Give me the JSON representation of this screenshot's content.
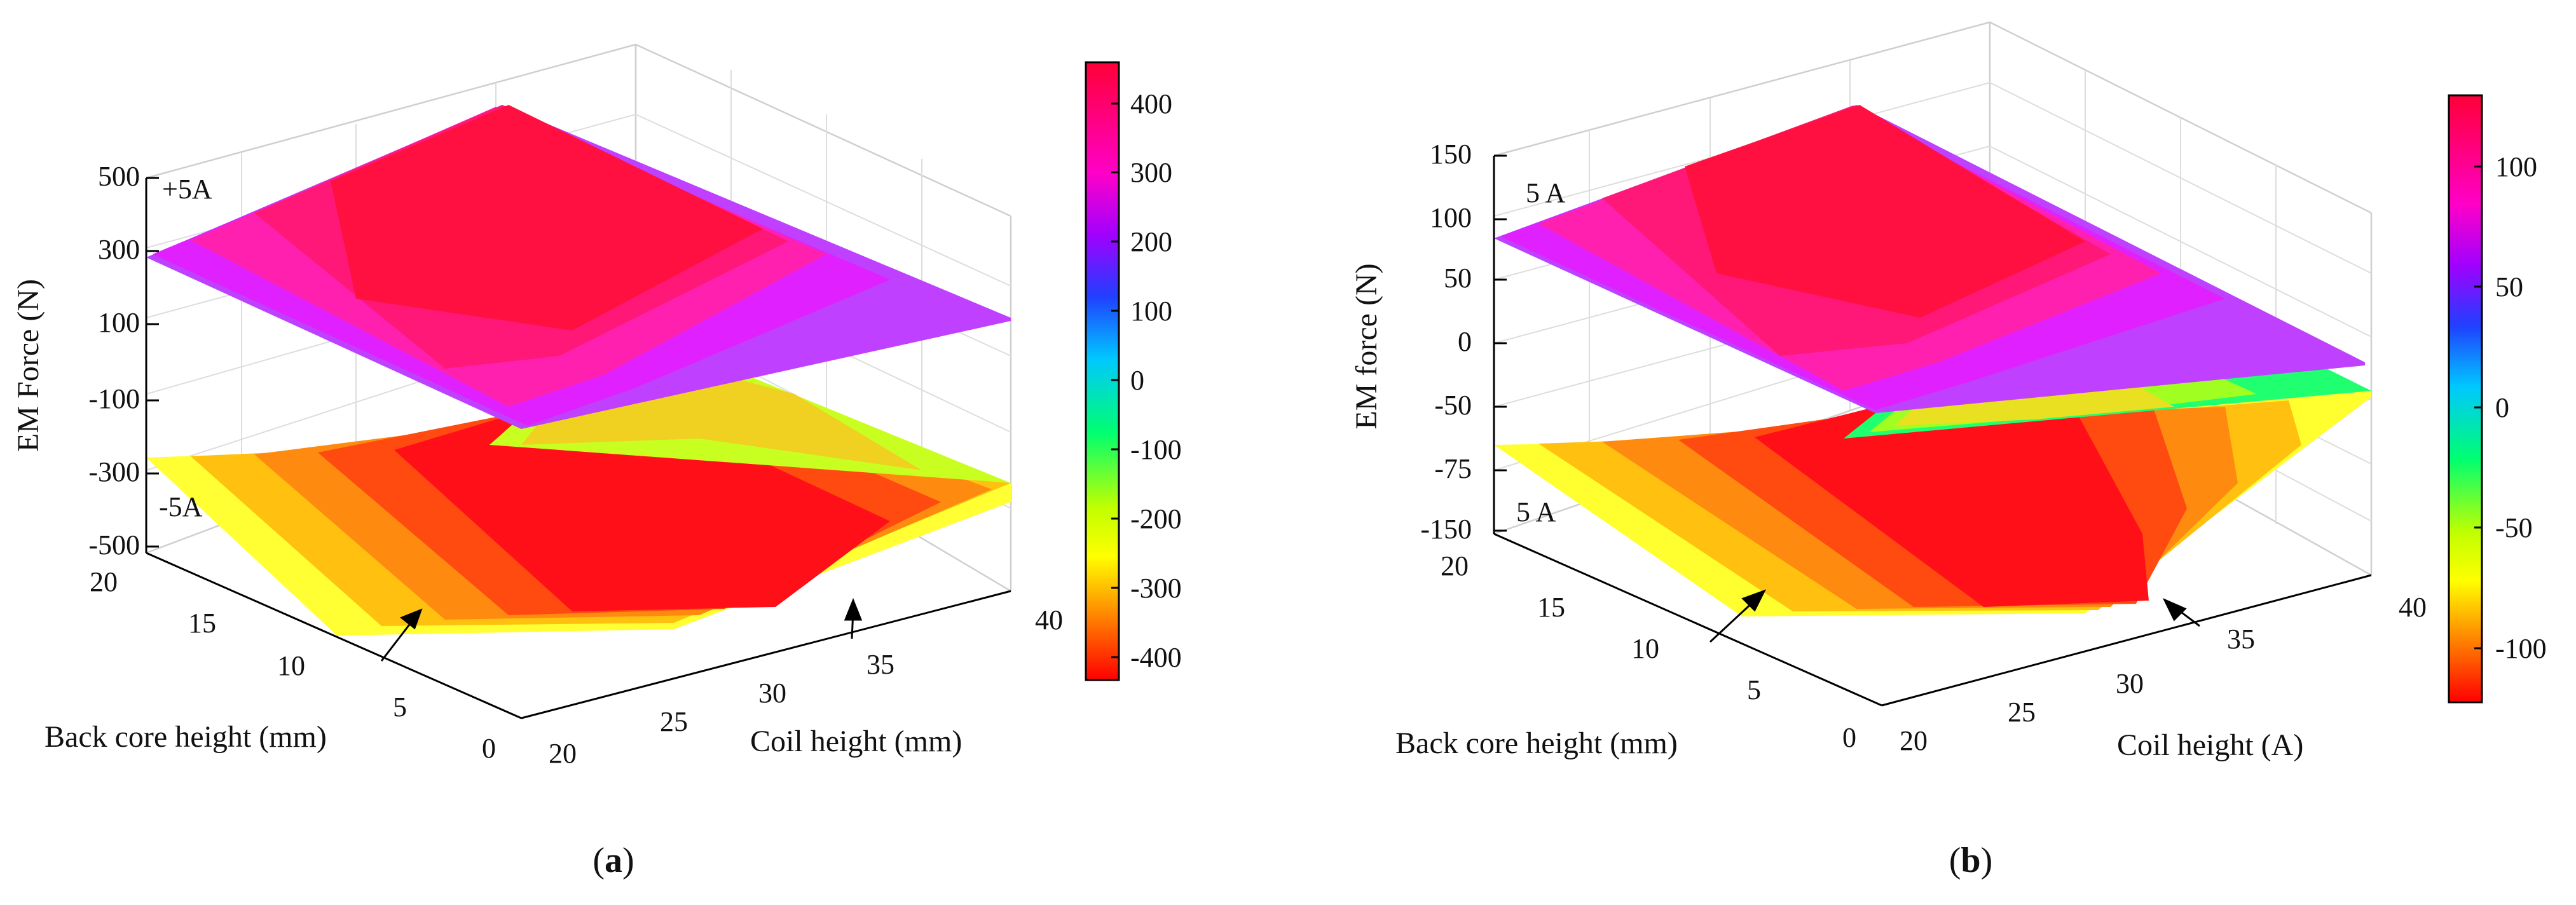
{
  "chart_data": [
    {
      "panel_label_prefix": "(",
      "panel_label_letter": "a",
      "panel_label_suffix": ")",
      "type": "surface3d",
      "title": "",
      "zlabel": "EM Force (N)",
      "xlabel": "Coil height (mm)",
      "ylabel": "Back core height (mm)",
      "x_ticks": [
        "20",
        "25",
        "30",
        "35",
        "40"
      ],
      "y_ticks": [
        "0",
        "5",
        "10",
        "15",
        "20"
      ],
      "z_ticks": [
        "-500",
        "-300",
        "-100",
        "100",
        "300",
        "500"
      ],
      "xlim": [
        20,
        40
      ],
      "ylim": [
        0,
        20
      ],
      "zlim": [
        -500,
        500
      ],
      "clim": [
        -430,
        460
      ],
      "colorbar_ticks": [
        "400",
        "300",
        "200",
        "100",
        "0",
        "-100",
        "-200",
        "-300",
        "-400"
      ],
      "colorbar_values": [
        400,
        300,
        200,
        100,
        0,
        -100,
        -200,
        -300,
        -400
      ],
      "annotations": [
        "+5A",
        "-5A"
      ],
      "surfaces": [
        {
          "name": "+5A",
          "coil_height": [
            20,
            22,
            24,
            26,
            28,
            30,
            32,
            34,
            36,
            38,
            40
          ],
          "force": [
            280,
            340,
            395,
            440,
            460,
            455,
            420,
            350,
            270,
            220,
            200
          ]
        },
        {
          "name": "-5A",
          "coil_height": [
            20,
            22,
            24,
            26,
            28,
            30,
            32,
            34,
            36,
            38,
            40
          ],
          "force": [
            -280,
            -340,
            -395,
            -425,
            -430,
            -420,
            -400,
            -380,
            -330,
            -290,
            -280
          ]
        }
      ]
    },
    {
      "panel_label_prefix": "(",
      "panel_label_letter": "b",
      "panel_label_suffix": ")",
      "type": "surface3d",
      "title": "",
      "zlabel": "EM force (N)",
      "xlabel": "Coil height (A)",
      "ylabel": "Back core height (mm)",
      "x_ticks": [
        "20",
        "25",
        "30",
        "35",
        "40"
      ],
      "y_ticks": [
        "0",
        "5",
        "10",
        "15",
        "20"
      ],
      "z_ticks": [
        "-150",
        "-75",
        "-50",
        "0",
        "50",
        "100",
        "150"
      ],
      "xlim": [
        20,
        40
      ],
      "ylim": [
        0,
        20
      ],
      "zlim": [
        -150,
        150
      ],
      "clim": [
        -122,
        130
      ],
      "colorbar_ticks": [
        "100",
        "50",
        "0",
        "-50",
        "-100"
      ],
      "colorbar_values": [
        100,
        50,
        0,
        -50,
        -100
      ],
      "annotations": [
        "5 A",
        "5 A"
      ],
      "surfaces": [
        {
          "name": "5 A",
          "coil_height": [
            20,
            22,
            24,
            26,
            28,
            30,
            32,
            34,
            36,
            38,
            40
          ],
          "force": [
            80,
            100,
            118,
            128,
            130,
            125,
            110,
            95,
            85,
            75,
            70
          ]
        },
        {
          "name": "5 A",
          "coil_height": [
            20,
            22,
            24,
            26,
            28,
            30,
            32,
            34,
            36,
            38,
            40
          ],
          "force": [
            -80,
            -100,
            -115,
            -122,
            -120,
            -110,
            -95,
            -80,
            -62,
            -50,
            -42
          ]
        }
      ]
    }
  ]
}
